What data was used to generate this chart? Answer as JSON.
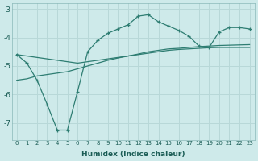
{
  "xlabel": "Humidex (Indice chaleur)",
  "background_color": "#ceeaea",
  "grid_color": "#b8d8d8",
  "line_color": "#2e7d72",
  "xlim": [
    -0.5,
    23.5
  ],
  "ylim": [
    -7.6,
    -2.8
  ],
  "yticks": [
    -7,
    -6,
    -5,
    -4,
    -3
  ],
  "xticks": [
    0,
    1,
    2,
    3,
    4,
    5,
    6,
    7,
    8,
    9,
    10,
    11,
    12,
    13,
    14,
    15,
    16,
    17,
    18,
    19,
    20,
    21,
    22,
    23
  ],
  "line1_x": [
    0,
    1,
    2,
    3,
    4,
    5,
    6,
    7,
    8,
    9,
    10,
    11,
    12,
    13,
    14,
    15,
    16,
    17,
    18,
    19,
    20,
    21,
    22,
    23
  ],
  "line1_y": [
    -4.6,
    -4.9,
    -5.5,
    -6.35,
    -7.25,
    -7.25,
    -5.9,
    -4.5,
    -4.1,
    -3.85,
    -3.7,
    -3.55,
    -3.25,
    -3.2,
    -3.45,
    -3.6,
    -3.75,
    -3.95,
    -4.3,
    -4.35,
    -3.8,
    -3.65,
    -3.65,
    -3.7
  ],
  "line2_x": [
    0,
    1,
    2,
    3,
    4,
    5,
    6,
    7,
    8,
    9,
    10,
    11,
    12,
    13,
    14,
    15,
    16,
    17,
    18,
    19,
    20,
    21,
    22,
    23
  ],
  "line2_y": [
    -4.6,
    -4.65,
    -4.7,
    -4.75,
    -4.8,
    -4.85,
    -4.9,
    -4.85,
    -4.8,
    -4.75,
    -4.7,
    -4.65,
    -4.6,
    -4.55,
    -4.5,
    -4.45,
    -4.42,
    -4.4,
    -4.38,
    -4.36,
    -4.35,
    -4.35,
    -4.35,
    -4.35
  ],
  "line3_x": [
    0,
    1,
    2,
    3,
    4,
    5,
    6,
    7,
    8,
    9,
    10,
    11,
    12,
    13,
    14,
    15,
    16,
    17,
    18,
    19,
    20,
    21,
    22,
    23
  ],
  "line3_y": [
    -5.5,
    -5.45,
    -5.35,
    -5.3,
    -5.25,
    -5.2,
    -5.1,
    -5.0,
    -4.9,
    -4.8,
    -4.72,
    -4.65,
    -4.58,
    -4.5,
    -4.45,
    -4.4,
    -4.38,
    -4.35,
    -4.32,
    -4.3,
    -4.28,
    -4.27,
    -4.26,
    -4.25
  ]
}
